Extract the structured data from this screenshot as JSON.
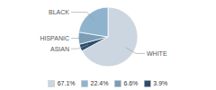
{
  "chart_data": {
    "type": "pie",
    "categories": [
      "WHITE",
      "ASIAN",
      "HISPANIC",
      "BLACK"
    ],
    "values": [
      67.1,
      3.9,
      6.6,
      22.4
    ],
    "colors": [
      "#ccd6e0",
      "#2b4d6e",
      "#7a9db8",
      "#8fb3cc"
    ],
    "legend": "bottom",
    "legend_labels": [
      "67.1%",
      "22.4%",
      "6.6%",
      "3.9%"
    ],
    "legend_colors": [
      "#ccd6e0",
      "#8fb3cc",
      "#7a9db8",
      "#2b4d6e"
    ]
  }
}
